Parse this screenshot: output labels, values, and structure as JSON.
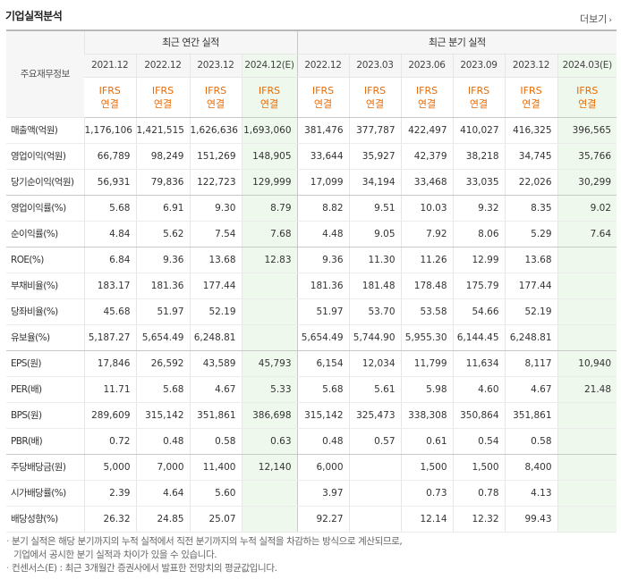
{
  "title": "기업실적분석",
  "more_label": "더보기",
  "header": {
    "rowhead": "주요재무정보",
    "annual_group": "최근 연간 실적",
    "quarter_group": "최근 분기 실적",
    "ifrs_top": "IFRS",
    "ifrs_bottom": "연결",
    "annual_periods": [
      "2021.12",
      "2022.12",
      "2023.12",
      "2024.12(E)"
    ],
    "quarter_periods": [
      "2022.12",
      "2023.03",
      "2023.06",
      "2023.09",
      "2023.12",
      "2024.03(E)"
    ]
  },
  "rows": [
    {
      "label": "매출액(억원)",
      "values": [
        "1,176,106",
        "1,421,515",
        "1,626,636",
        "1,693,060",
        "381,476",
        "377,787",
        "422,497",
        "410,027",
        "416,325",
        "396,565"
      ]
    },
    {
      "label": "영업이익(억원)",
      "values": [
        "66,789",
        "98,249",
        "151,269",
        "148,905",
        "33,644",
        "35,927",
        "42,379",
        "38,218",
        "34,745",
        "35,766"
      ]
    },
    {
      "label": "당기순이익(억원)",
      "values": [
        "56,931",
        "79,836",
        "122,723",
        "129,999",
        "17,099",
        "34,194",
        "33,468",
        "33,035",
        "22,026",
        "30,299"
      ]
    },
    {
      "label": "영업이익률(%)",
      "values": [
        "5.68",
        "6.91",
        "9.30",
        "8.79",
        "8.82",
        "9.51",
        "10.03",
        "9.32",
        "8.35",
        "9.02"
      ]
    },
    {
      "label": "순이익률(%)",
      "values": [
        "4.84",
        "5.62",
        "7.54",
        "7.68",
        "4.48",
        "9.05",
        "7.92",
        "8.06",
        "5.29",
        "7.64"
      ]
    },
    {
      "label": "ROE(%)",
      "values": [
        "6.84",
        "9.36",
        "13.68",
        "12.83",
        "9.36",
        "11.30",
        "11.26",
        "12.99",
        "13.68",
        ""
      ]
    },
    {
      "label": "부채비율(%)",
      "values": [
        "183.17",
        "181.36",
        "177.44",
        "",
        "181.36",
        "181.48",
        "178.48",
        "175.79",
        "177.44",
        ""
      ]
    },
    {
      "label": "당좌비율(%)",
      "values": [
        "45.68",
        "51.97",
        "52.19",
        "",
        "51.97",
        "53.70",
        "53.58",
        "54.66",
        "52.19",
        ""
      ]
    },
    {
      "label": "유보율(%)",
      "values": [
        "5,187.27",
        "5,654.49",
        "6,248.81",
        "",
        "5,654.49",
        "5,744.90",
        "5,955.30",
        "6,144.45",
        "6,248.81",
        ""
      ]
    },
    {
      "label": "EPS(원)",
      "values": [
        "17,846",
        "26,592",
        "43,589",
        "45,793",
        "6,154",
        "12,034",
        "11,799",
        "11,634",
        "8,117",
        "10,940"
      ]
    },
    {
      "label": "PER(배)",
      "values": [
        "11.71",
        "5.68",
        "4.67",
        "5.33",
        "5.68",
        "5.61",
        "5.98",
        "4.60",
        "4.67",
        "21.48"
      ]
    },
    {
      "label": "BPS(원)",
      "values": [
        "289,609",
        "315,142",
        "351,861",
        "386,698",
        "315,142",
        "325,473",
        "338,308",
        "350,864",
        "351,861",
        ""
      ]
    },
    {
      "label": "PBR(배)",
      "values": [
        "0.72",
        "0.48",
        "0.58",
        "0.63",
        "0.48",
        "0.57",
        "0.61",
        "0.54",
        "0.58",
        ""
      ]
    },
    {
      "label": "주당배당금(원)",
      "values": [
        "5,000",
        "7,000",
        "11,400",
        "12,140",
        "6,000",
        "",
        "1,500",
        "1,500",
        "8,400",
        ""
      ]
    },
    {
      "label": "시가배당률(%)",
      "values": [
        "2.39",
        "4.64",
        "5.60",
        "",
        "3.97",
        "",
        "0.73",
        "0.78",
        "4.13",
        ""
      ]
    },
    {
      "label": "배당성향(%)",
      "values": [
        "26.32",
        "24.85",
        "25.07",
        "",
        "92.27",
        "",
        "12.14",
        "12.32",
        "99.43",
        ""
      ]
    }
  ],
  "notes": [
    "분기 실적은 해당 분기까지의 누적 실적에서 직전 분기까지의 누적 실적을 차감하는 방식으로 계산되므로,",
    "기업에서 공시한 분기 실적과 차이가 있을 수 있습니다.",
    "컨센서스(E) : 최근 3개월간 증권사에서 발표한 전망치의 평균값입니다."
  ],
  "colors": {
    "ifrs": "#ee6a00",
    "estimate_bg": "#eef8ec",
    "header_bg": "#f6f6f6"
  }
}
